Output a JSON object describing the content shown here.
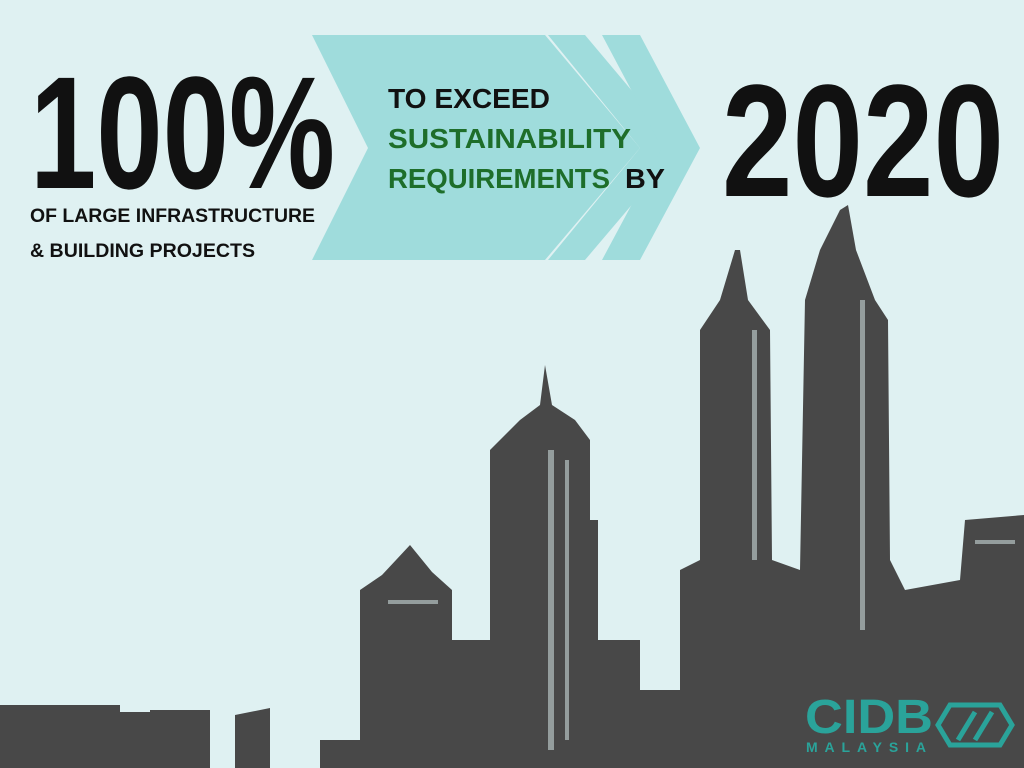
{
  "headline": {
    "stat": "100%",
    "stat_caption": [
      "OF LARGE INFRASTRUCTURE",
      "& BUILDING PROJECTS"
    ]
  },
  "middle": {
    "line1": "TO EXCEED",
    "line2": "SUSTAINABILITY",
    "line3_green": "REQUIREMENTS",
    "line3_black": "BY"
  },
  "year": "2020",
  "logo": {
    "name": "CIDB",
    "country": "MALAYSIA"
  }
}
